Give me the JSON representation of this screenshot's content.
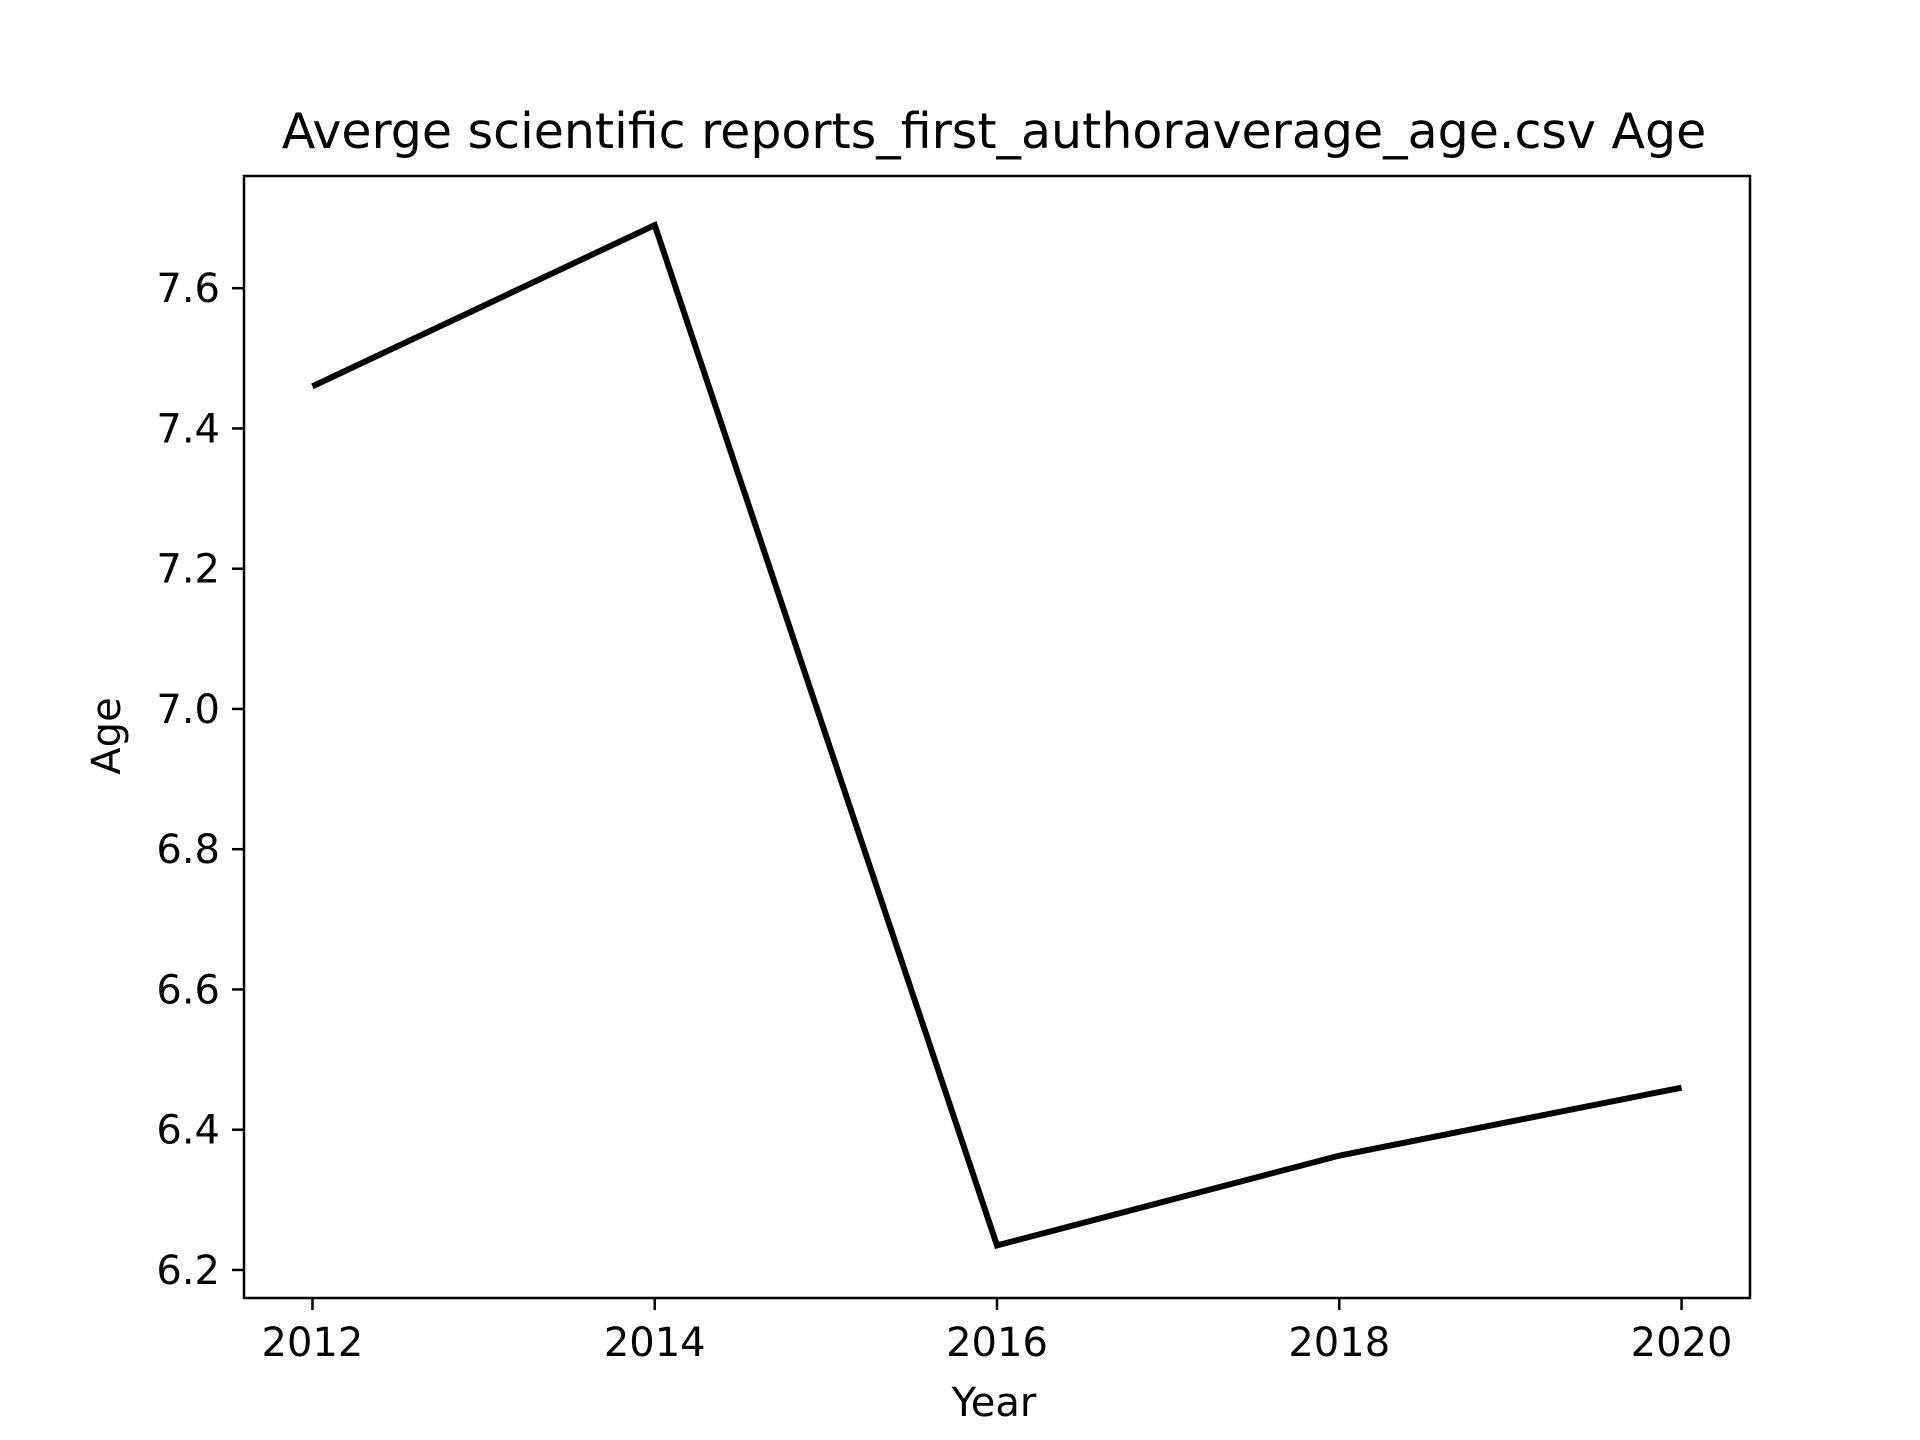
{
  "chart_data": {
    "type": "line",
    "title": "Averge scientific reports_first_authoraverage_age.csv Age",
    "xlabel": "Year",
    "ylabel": "Age",
    "x": [
      2012,
      2014,
      2016,
      2018,
      2020
    ],
    "series": [
      {
        "values": [
          7.46,
          7.69,
          6.235,
          6.363,
          6.46
        ],
        "color": "#000000"
      }
    ],
    "xlim": [
      2011.6,
      2020.4
    ],
    "ylim": [
      6.16,
      7.76
    ],
    "xticks": [
      "2012",
      "2014",
      "2016",
      "2018",
      "2020"
    ],
    "yticks": [
      "6.2",
      "6.4",
      "6.6",
      "6.8",
      "7.0",
      "7.2",
      "7.4",
      "7.6"
    ],
    "grid": false,
    "legend": "none"
  }
}
